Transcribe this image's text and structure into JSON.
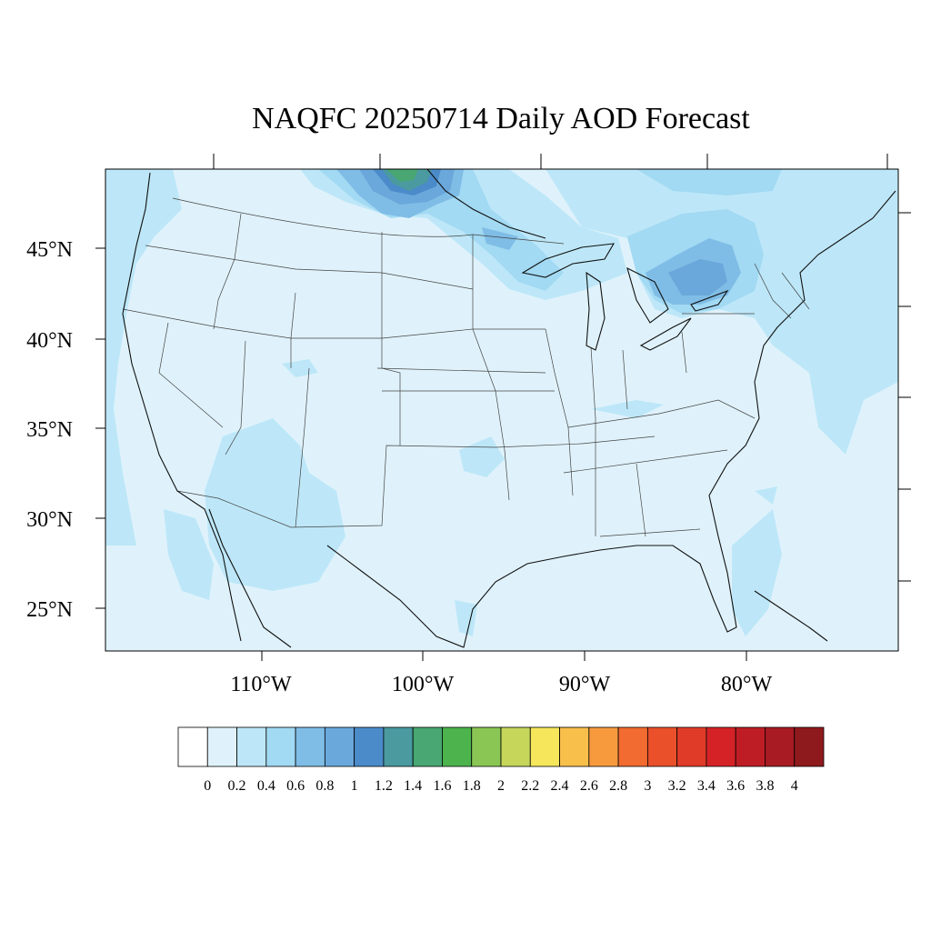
{
  "title": "NAQFC 20250714 Daily AOD Forecast",
  "map": {
    "region": "CONUS",
    "lat_labels": [
      "45°N",
      "40°N",
      "35°N",
      "30°N",
      "25°N"
    ],
    "lon_labels": [
      "110°W",
      "100°W",
      "90°W",
      "80°W"
    ],
    "background_color": "#dff2fb"
  },
  "colorbar": {
    "tick_labels": [
      "0",
      "0.2",
      "0.4",
      "0.6",
      "0.8",
      "1",
      "1.2",
      "1.4",
      "1.6",
      "1.8",
      "2",
      "2.2",
      "2.4",
      "2.6",
      "2.8",
      "3",
      "3.2",
      "3.4",
      "3.6",
      "3.8",
      "4"
    ],
    "colors": [
      "#ffffff",
      "#dff2fb",
      "#bde7f8",
      "#a2d9f3",
      "#7fbde6",
      "#6aa8dc",
      "#4b8bc9",
      "#4a9aa0",
      "#48a772",
      "#4cb34d",
      "#8ac653",
      "#c5d65b",
      "#f5e65c",
      "#f8bf4b",
      "#f79a3e",
      "#f26b30",
      "#ea502a",
      "#e03b28",
      "#d42227",
      "#bf1d26",
      "#a81b22",
      "#8f1a1d"
    ]
  }
}
